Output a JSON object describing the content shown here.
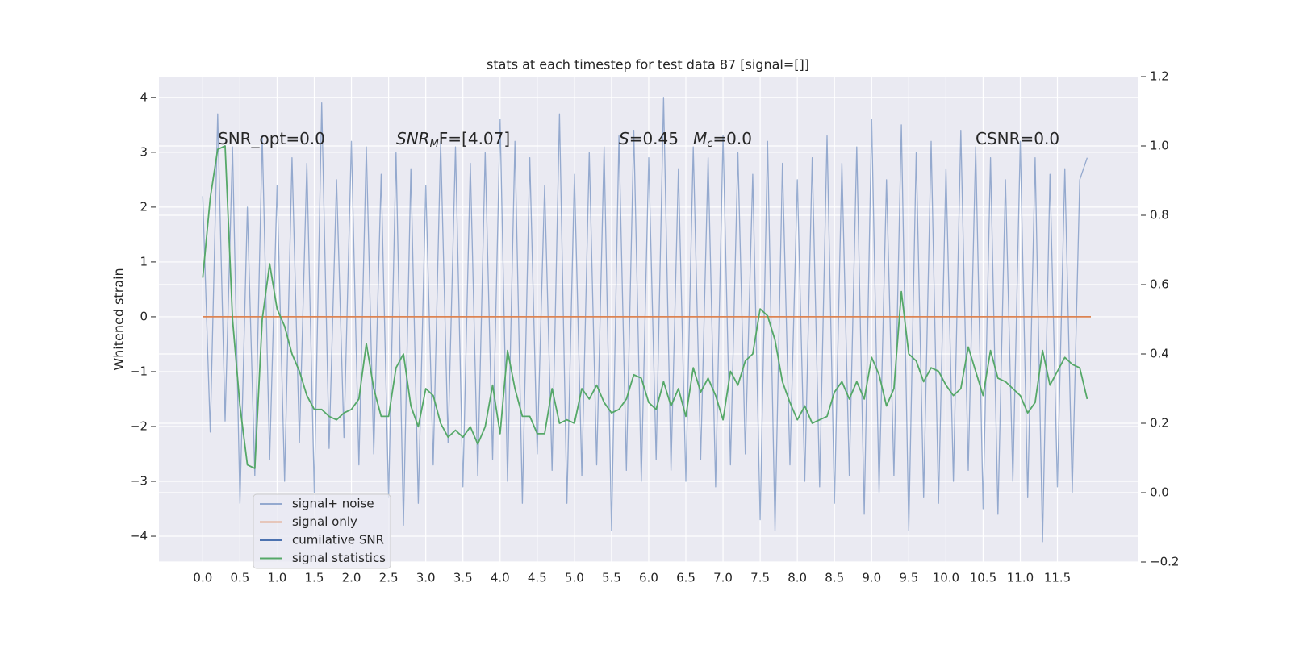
{
  "chart_data": {
    "type": "line",
    "title": "stats at each timestep for test data 87 [signal=[]]",
    "ylabel": "Whitened strain",
    "x": [
      0.0,
      0.1,
      0.2,
      0.3,
      0.4,
      0.5,
      0.6,
      0.7,
      0.8,
      0.9,
      1.0,
      1.1,
      1.2,
      1.3,
      1.4,
      1.5,
      1.6,
      1.7,
      1.8,
      1.9,
      2.0,
      2.1,
      2.2,
      2.3,
      2.4,
      2.5,
      2.6,
      2.7,
      2.8,
      2.9,
      3.0,
      3.1,
      3.2,
      3.3,
      3.4,
      3.5,
      3.6,
      3.7,
      3.8,
      3.9,
      4.0,
      4.1,
      4.2,
      4.3,
      4.4,
      4.5,
      4.6,
      4.7,
      4.8,
      4.9,
      5.0,
      5.1,
      5.2,
      5.3,
      5.4,
      5.5,
      5.6,
      5.7,
      5.8,
      5.9,
      6.0,
      6.1,
      6.2,
      6.3,
      6.4,
      6.5,
      6.6,
      6.7,
      6.8,
      6.9,
      7.0,
      7.1,
      7.2,
      7.3,
      7.4,
      7.5,
      7.6,
      7.7,
      7.8,
      7.9,
      8.0,
      8.1,
      8.2,
      8.3,
      8.4,
      8.5,
      8.6,
      8.7,
      8.8,
      8.9,
      9.0,
      9.1,
      9.2,
      9.3,
      9.4,
      9.5,
      9.6,
      9.7,
      9.8,
      9.9,
      10.0,
      10.1,
      10.2,
      10.3,
      10.4,
      10.5,
      10.6,
      10.7,
      10.8,
      10.9,
      11.0,
      11.1,
      11.2,
      11.3,
      11.4,
      11.5,
      11.6,
      11.7,
      11.8,
      11.9
    ],
    "series": [
      {
        "name": "signal+ noise",
        "color": "#4c72b0",
        "values": [
          2.2,
          -2.1,
          3.7,
          -1.9,
          3.1,
          -3.4,
          2.0,
          -2.9,
          3.3,
          -2.6,
          2.4,
          -3.0,
          2.9,
          -2.3,
          2.8,
          -3.2,
          3.9,
          -2.4,
          2.5,
          -2.2,
          3.2,
          -2.7,
          3.1,
          -2.5,
          2.6,
          -3.3,
          3.0,
          -3.8,
          2.7,
          -3.4,
          2.4,
          -2.7,
          3.2,
          -2.3,
          3.1,
          -3.1,
          2.8,
          -2.9,
          3.0,
          -2.6,
          3.6,
          -3.0,
          3.2,
          -3.4,
          2.9,
          -2.5,
          2.4,
          -2.8,
          3.7,
          -3.4,
          2.6,
          -2.9,
          3.0,
          -2.7,
          3.1,
          -3.9,
          3.3,
          -2.8,
          3.4,
          -3.0,
          2.9,
          -2.6,
          4.0,
          -2.8,
          2.7,
          -3.0,
          3.1,
          -2.6,
          2.9,
          -3.1,
          3.3,
          -2.7,
          3.0,
          -2.5,
          2.6,
          -3.7,
          3.2,
          -3.9,
          2.8,
          -2.7,
          2.5,
          -3.0,
          2.9,
          -3.1,
          3.3,
          -3.4,
          2.8,
          -2.9,
          3.1,
          -3.6,
          3.6,
          -3.2,
          2.5,
          -2.9,
          3.5,
          -3.9,
          3.0,
          -3.3,
          3.2,
          -3.4,
          2.7,
          -3.0,
          3.4,
          -2.8,
          3.1,
          -3.5,
          2.9,
          -3.6,
          2.5,
          -3.0,
          3.2,
          -3.3,
          2.9,
          -4.1,
          2.6,
          -3.1,
          2.7,
          -3.2,
          2.5,
          2.9
        ]
      },
      {
        "name": "signal only",
        "color": "#dd8452",
        "x": [
          0.0,
          11.95
        ],
        "values": [
          0,
          0
        ]
      },
      {
        "name": "cumilative SNR",
        "color": "#4c72b0",
        "x": [],
        "values": []
      },
      {
        "name": "signal statistics",
        "color": "#55a868",
        "axis": "y2",
        "values": [
          0.62,
          0.85,
          0.99,
          1.0,
          0.5,
          0.25,
          0.08,
          0.07,
          0.5,
          0.66,
          0.53,
          0.48,
          0.4,
          0.35,
          0.28,
          0.24,
          0.24,
          0.22,
          0.21,
          0.23,
          0.24,
          0.27,
          0.43,
          0.3,
          0.22,
          0.22,
          0.36,
          0.4,
          0.25,
          0.19,
          0.3,
          0.28,
          0.2,
          0.16,
          0.18,
          0.16,
          0.19,
          0.14,
          0.19,
          0.31,
          0.17,
          0.41,
          0.3,
          0.22,
          0.22,
          0.17,
          0.17,
          0.3,
          0.2,
          0.21,
          0.2,
          0.3,
          0.27,
          0.31,
          0.26,
          0.23,
          0.24,
          0.27,
          0.34,
          0.33,
          0.26,
          0.24,
          0.32,
          0.25,
          0.3,
          0.22,
          0.36,
          0.29,
          0.33,
          0.28,
          0.21,
          0.35,
          0.31,
          0.38,
          0.4,
          0.53,
          0.51,
          0.44,
          0.32,
          0.26,
          0.21,
          0.25,
          0.2,
          0.21,
          0.22,
          0.29,
          0.32,
          0.27,
          0.32,
          0.27,
          0.39,
          0.34,
          0.25,
          0.3,
          0.58,
          0.4,
          0.38,
          0.32,
          0.36,
          0.35,
          0.31,
          0.28,
          0.3,
          0.42,
          0.35,
          0.28,
          0.41,
          0.33,
          0.32,
          0.3,
          0.28,
          0.23,
          0.26,
          0.41,
          0.31,
          0.35,
          0.39,
          0.37,
          0.36,
          0.27
        ]
      }
    ],
    "annotations": [
      [
        {
          "text": "SNR_opt=0.0"
        }
      ],
      [
        {
          "text": "SNR",
          "italic": true
        },
        {
          "text": "M",
          "italic": true,
          "sub": true
        },
        {
          "text": "F=[4.07]"
        }
      ],
      [
        {
          "text": "S",
          "italic": true
        },
        {
          "text": "=0.45"
        }
      ],
      [
        {
          "text": "M",
          "italic": true
        },
        {
          "text": "c",
          "italic": true,
          "sub": true
        },
        {
          "text": "=0.0"
        }
      ],
      [
        {
          "text": "CSNR=0.0"
        }
      ]
    ],
    "xlim": [
      -0.59,
      12.58
    ],
    "xticks": [
      {
        "value": 0,
        "label": "0.0"
      },
      0.5,
      {
        "value": 1,
        "label": "1.0"
      },
      1.5,
      {
        "value": 2,
        "label": "2.0"
      },
      2.5,
      {
        "value": 3,
        "label": "3.0"
      },
      3.5,
      {
        "value": 4,
        "label": "4.0"
      },
      4.5,
      {
        "value": 5,
        "label": "5.0"
      },
      5.5,
      {
        "value": 6,
        "label": "6.0"
      },
      6.5,
      {
        "value": 7,
        "label": "7.0"
      },
      7.5,
      {
        "value": 8,
        "label": "8.0"
      },
      8.5,
      {
        "value": 9,
        "label": "9.0"
      },
      9.5,
      {
        "value": 10,
        "label": "10.0"
      },
      10.5,
      {
        "value": 11,
        "label": "11.0"
      },
      11.5
    ],
    "ylim": [
      -4.47,
      4.38
    ],
    "yticks": [
      {
        "value": -4,
        "label": "−4"
      },
      {
        "value": -3,
        "label": "−3"
      },
      {
        "value": -2,
        "label": "−2"
      },
      {
        "value": -1,
        "label": "−1"
      },
      0,
      1,
      2,
      3,
      4
    ],
    "y2lim": [
      -0.2,
      1.2
    ],
    "y2ticks": [
      {
        "value": -0.2,
        "label": "−0.2"
      },
      {
        "value": 0,
        "label": "0.0"
      },
      0.2,
      0.4,
      0.6,
      0.8,
      {
        "value": 1,
        "label": "1.0"
      },
      1.2
    ],
    "grid": true,
    "legend": "lower left"
  }
}
